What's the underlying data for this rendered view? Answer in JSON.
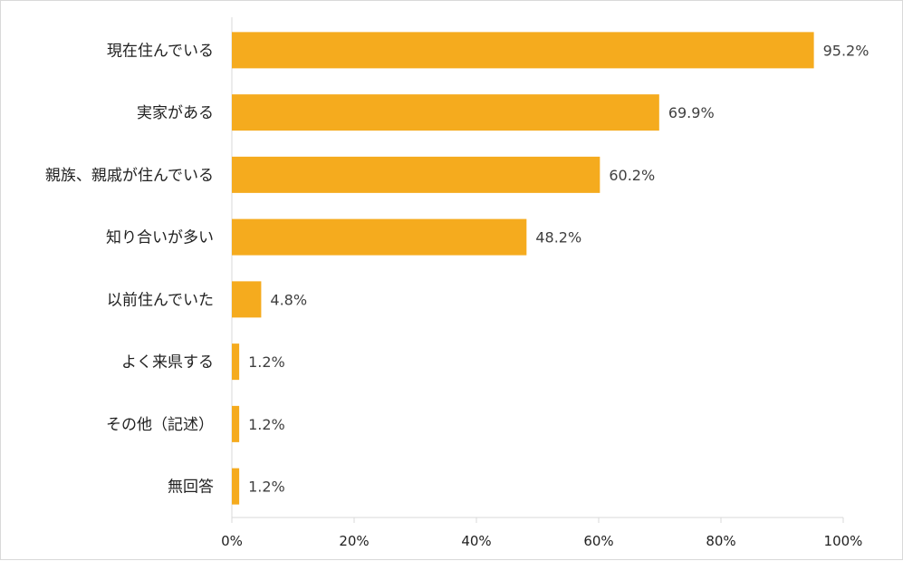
{
  "chart_data": {
    "type": "bar",
    "orientation": "horizontal",
    "categories": [
      "現在住んでいる",
      "実家がある",
      "親族、親戚が住んでいる",
      "知り合いが多い",
      "以前住んでいた",
      "よく来県する",
      "その他（記述）",
      "無回答"
    ],
    "values": [
      95.2,
      69.9,
      60.2,
      48.2,
      4.8,
      1.2,
      1.2,
      1.2
    ],
    "value_labels": [
      "95.2%",
      "69.9%",
      "60.2%",
      "48.2%",
      "4.8%",
      "1.2%",
      "1.2%",
      "1.2%"
    ],
    "xlim": [
      0,
      100
    ],
    "xticks": [
      0,
      20,
      40,
      60,
      80,
      100
    ],
    "xtick_labels": [
      "0%",
      "20%",
      "40%",
      "60%",
      "80%",
      "100%"
    ],
    "title": "",
    "xlabel": "",
    "ylabel": "",
    "grid": false,
    "bar_color": "#F5AB1E",
    "axis_color": "#d9d9d9"
  }
}
